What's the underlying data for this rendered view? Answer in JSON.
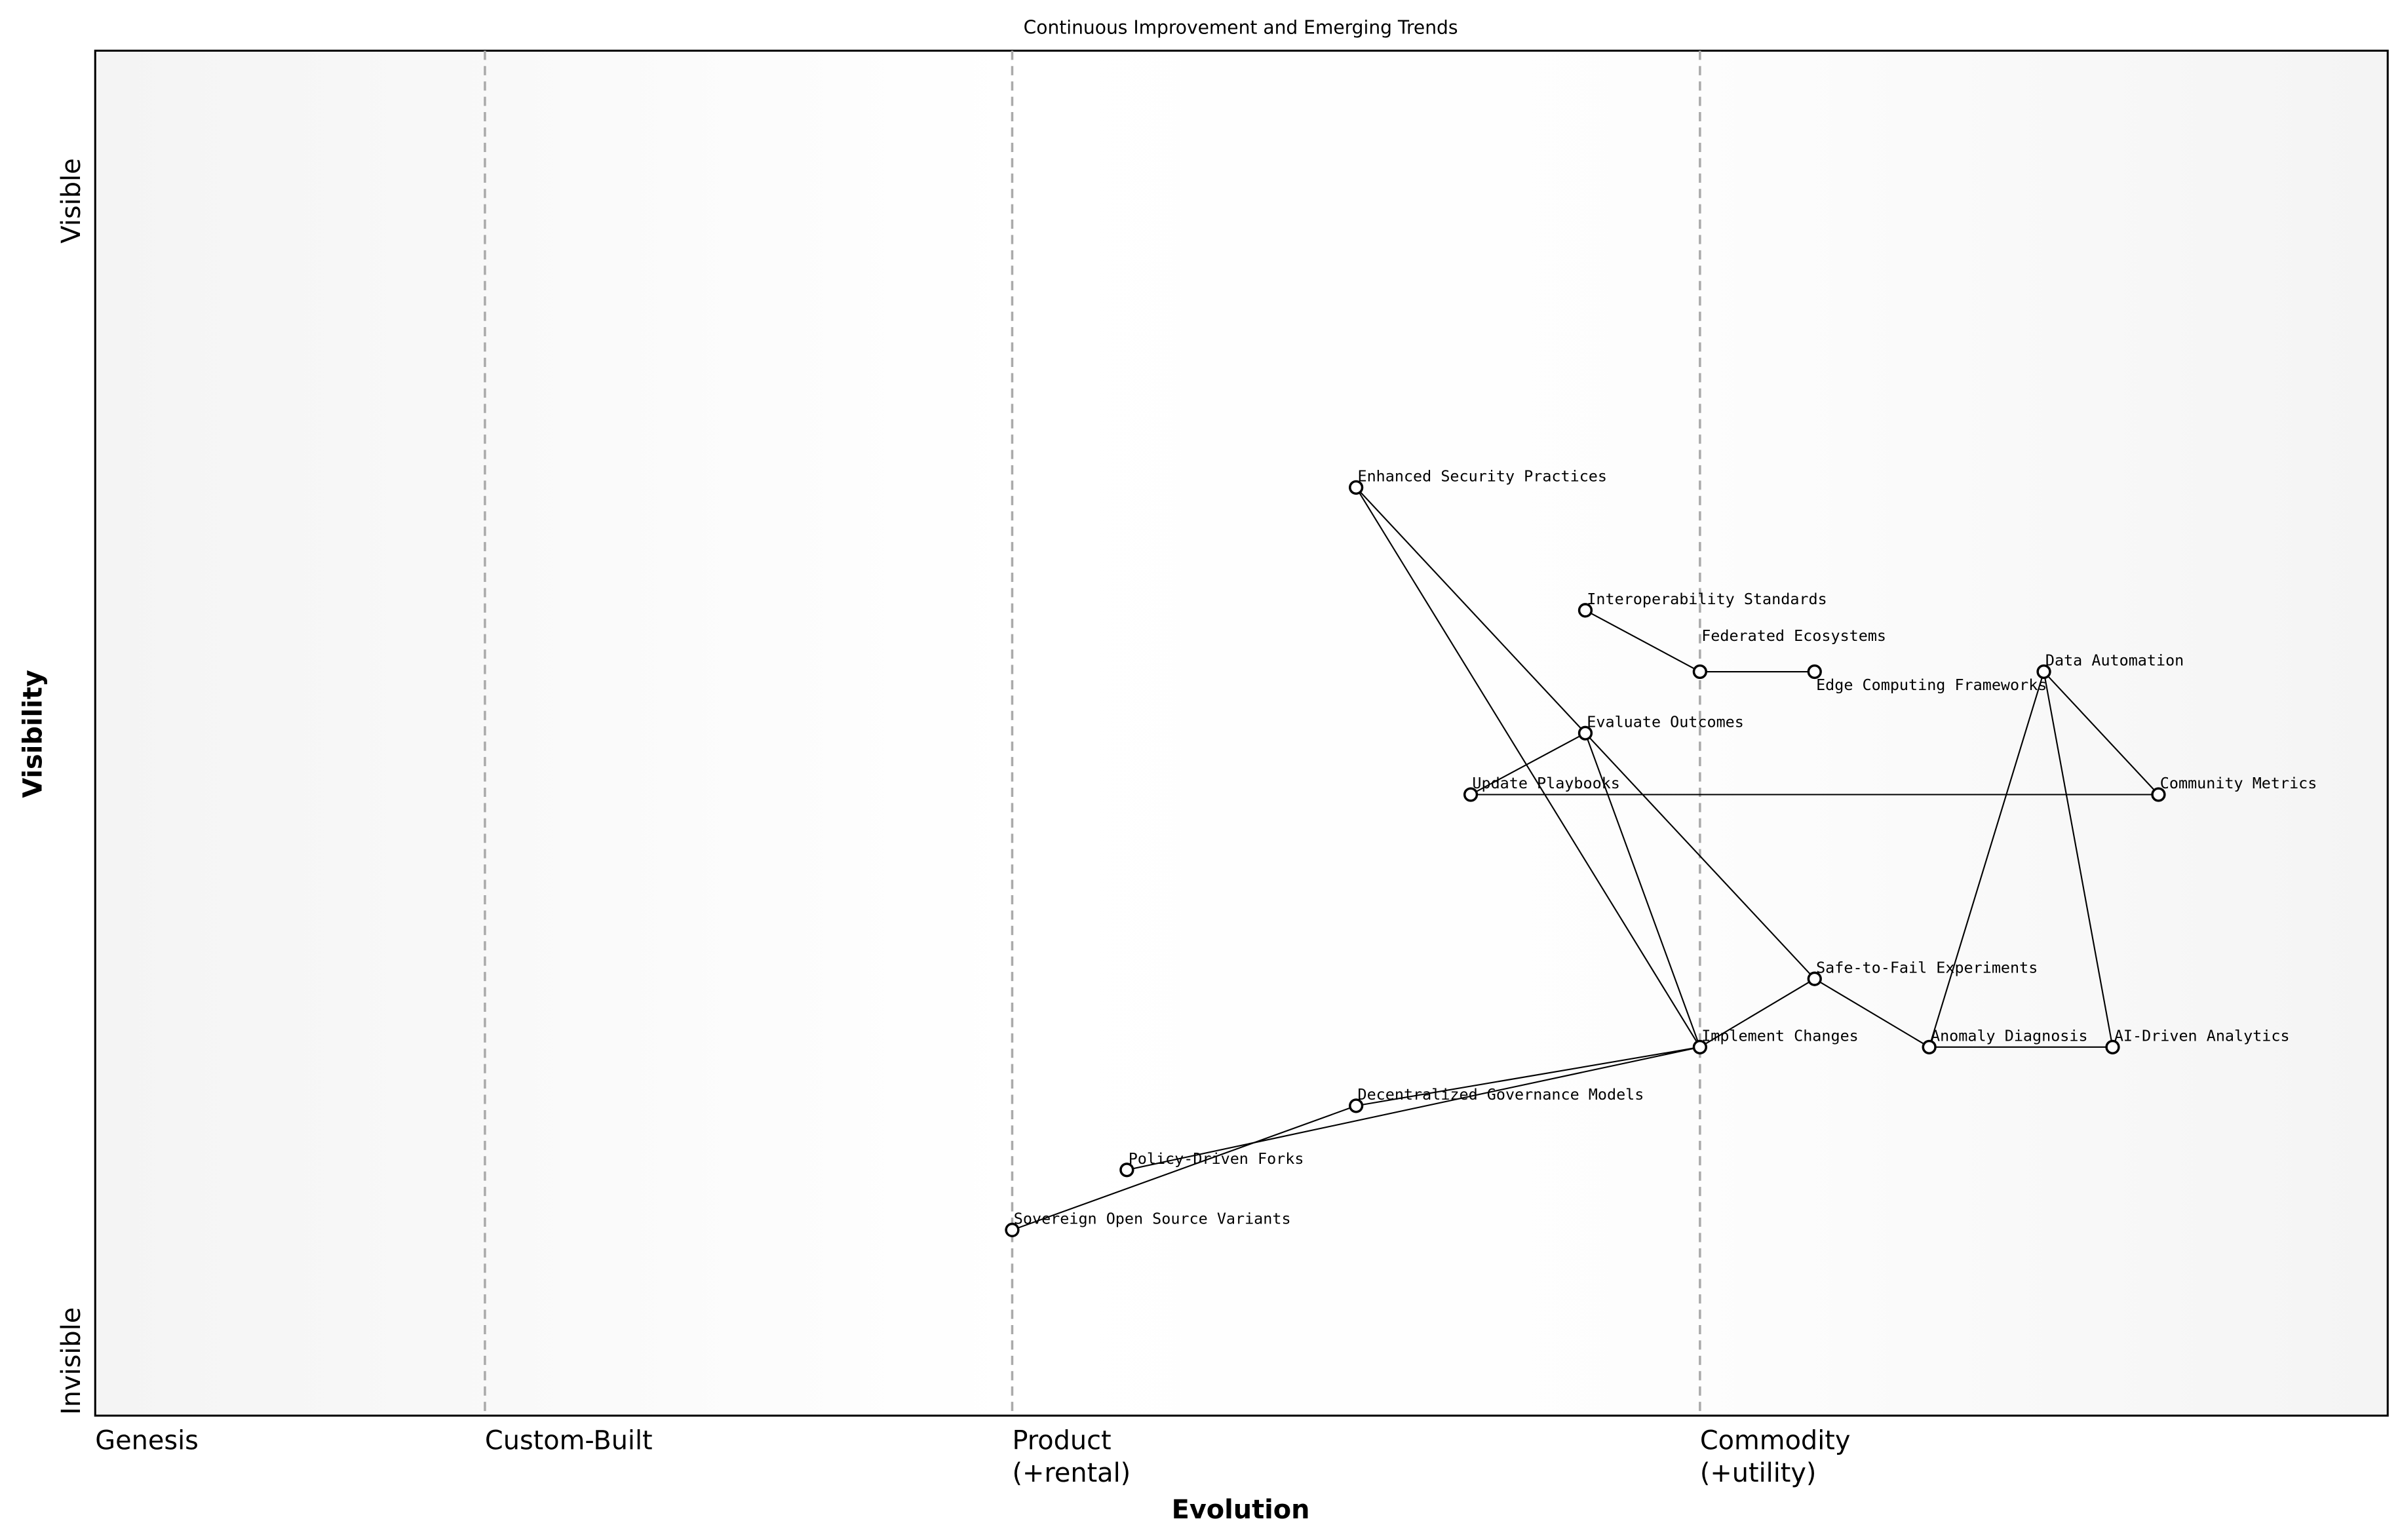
{
  "chart_data": {
    "type": "wardley-map",
    "title": "Continuous Improvement and Emerging Trends",
    "xlabel": "Evolution",
    "ylabel": "Visibility",
    "xlim": [
      0,
      1
    ],
    "ylim": [
      0,
      1
    ],
    "y_ticks": [
      {
        "label": "Invisible",
        "value": 0.04
      },
      {
        "label": "Visible",
        "value": 0.89
      }
    ],
    "stages": [
      {
        "label": "Genesis",
        "value": 0.0
      },
      {
        "label": "Custom-Built",
        "value": 0.17
      },
      {
        "label": "Product",
        "sub": "(+rental)",
        "value": 0.4
      },
      {
        "label": "Commodity",
        "sub": "(+utility)",
        "value": 0.7
      }
    ],
    "nodes": [
      {
        "name": "Enhanced Security Practices",
        "x": 0.55,
        "y": 0.68
      },
      {
        "name": "Interoperability Standards",
        "x": 0.65,
        "y": 0.59
      },
      {
        "name": "Federated Ecosystems",
        "x": 0.7,
        "y": 0.545
      },
      {
        "name": "Edge Computing Frameworks",
        "x": 0.75,
        "y": 0.545
      },
      {
        "name": "Data Automation",
        "x": 0.85,
        "y": 0.545
      },
      {
        "name": "Evaluate Outcomes",
        "x": 0.65,
        "y": 0.5
      },
      {
        "name": "Update Playbooks",
        "x": 0.6,
        "y": 0.455
      },
      {
        "name": "Community Metrics",
        "x": 0.9,
        "y": 0.455
      },
      {
        "name": "Safe-to-Fail Experiments",
        "x": 0.75,
        "y": 0.32
      },
      {
        "name": "Implement Changes",
        "x": 0.7,
        "y": 0.27
      },
      {
        "name": "Anomaly Diagnosis",
        "x": 0.8,
        "y": 0.27
      },
      {
        "name": "AI-Driven Analytics",
        "x": 0.88,
        "y": 0.27
      },
      {
        "name": "Decentralized Governance Models",
        "x": 0.55,
        "y": 0.227
      },
      {
        "name": "Policy-Driven Forks",
        "x": 0.45,
        "y": 0.18
      },
      {
        "name": "Sovereign Open Source Variants",
        "x": 0.4,
        "y": 0.136
      }
    ],
    "edges": [
      [
        "Sovereign Open Source Variants",
        "Decentralized Governance Models"
      ],
      [
        "Policy-Driven Forks",
        "Implement Changes"
      ],
      [
        "Decentralized Governance Models",
        "Implement Changes"
      ],
      [
        "Implement Changes",
        "Safe-to-Fail Experiments"
      ],
      [
        "Safe-to-Fail Experiments",
        "Anomaly Diagnosis"
      ],
      [
        "Anomaly Diagnosis",
        "AI-Driven Analytics"
      ],
      [
        "Anomaly Diagnosis",
        "Data Automation"
      ],
      [
        "AI-Driven Analytics",
        "Data Automation"
      ],
      [
        "Data Automation",
        "Community Metrics"
      ],
      [
        "Community Metrics",
        "Update Playbooks"
      ],
      [
        "Update Playbooks",
        "Evaluate Outcomes"
      ],
      [
        "Evaluate Outcomes",
        "Implement Changes"
      ],
      [
        "Enhanced Security Practices",
        "Implement Changes"
      ],
      [
        "Enhanced Security Practices",
        "Safe-to-Fail Experiments"
      ],
      [
        "Interoperability Standards",
        "Federated Ecosystems"
      ],
      [
        "Federated Ecosystems",
        "Edge Computing Frameworks"
      ]
    ],
    "colors": {
      "node_fill": "#ffffff",
      "node_stroke": "#000000",
      "edge": "#000000",
      "stage_line": "#aaaaaa"
    }
  }
}
